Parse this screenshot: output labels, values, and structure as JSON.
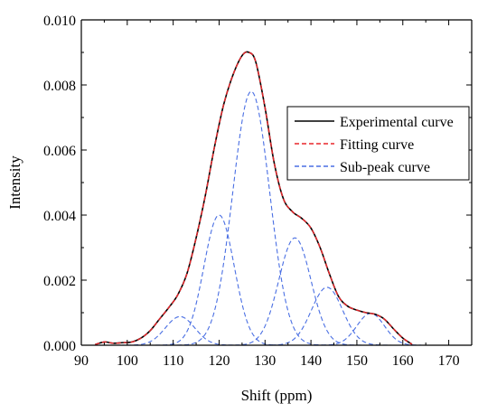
{
  "chart_data": {
    "type": "line",
    "title": "",
    "xlabel": "Shift (ppm)",
    "ylabel": "Intensity",
    "xlim": [
      90,
      175
    ],
    "ylim": [
      0,
      0.01
    ],
    "xticks": [
      90,
      100,
      110,
      120,
      130,
      140,
      150,
      160,
      170
    ],
    "xtick_labels": [
      "90",
      "100",
      "110",
      "120",
      "130",
      "140",
      "150",
      "160",
      "170"
    ],
    "yticks": [
      0,
      0.002,
      0.004,
      0.006,
      0.008,
      0.01
    ],
    "ytick_labels": [
      "0.000",
      "0.002",
      "0.004",
      "0.006",
      "0.008",
      "0.010"
    ],
    "grid": false,
    "legend_position": "top-right",
    "legend": [
      {
        "label": "Experimental curve",
        "color": "#000000",
        "dash": "solid"
      },
      {
        "label": "Fitting curve",
        "color": "#e8262a",
        "dash": "dashed"
      },
      {
        "label": "Sub-peak curve",
        "color": "#4a6fe3",
        "dash": "dashed"
      }
    ],
    "sub_peaks": [
      {
        "center": 111.5,
        "height": 0.00088,
        "sigma": 3.2
      },
      {
        "center": 120.0,
        "height": 0.004,
        "sigma": 3.3
      },
      {
        "center": 127.0,
        "height": 0.0078,
        "sigma": 4.0
      },
      {
        "center": 136.5,
        "height": 0.0033,
        "sigma": 3.5
      },
      {
        "center": 143.5,
        "height": 0.00178,
        "sigma": 3.4
      },
      {
        "center": 153.0,
        "height": 0.00098,
        "sigma": 3.0
      }
    ],
    "series": [
      {
        "name": "Experimental curve",
        "color": "#000000",
        "x": [
          93,
          95,
          97,
          99,
          101,
          103,
          105,
          107,
          109,
          111,
          113,
          115,
          117,
          119,
          121,
          123,
          125,
          126.5,
          128,
          130,
          132,
          134,
          136,
          138,
          140,
          142,
          144,
          146,
          148,
          150,
          152,
          154,
          156,
          158,
          160,
          162
        ],
        "y": [
          2e-05,
          0.0001,
          6e-05,
          8e-05,
          0.0001,
          0.00022,
          0.00045,
          0.0008,
          0.00115,
          0.00155,
          0.0022,
          0.0033,
          0.0046,
          0.0061,
          0.0074,
          0.0083,
          0.0089,
          0.009,
          0.0087,
          0.0073,
          0.0056,
          0.0045,
          0.0041,
          0.0039,
          0.0036,
          0.003,
          0.0022,
          0.0015,
          0.0012,
          0.00108,
          0.001,
          0.00095,
          0.0008,
          0.0005,
          0.00022,
          3e-05
        ]
      }
    ]
  }
}
